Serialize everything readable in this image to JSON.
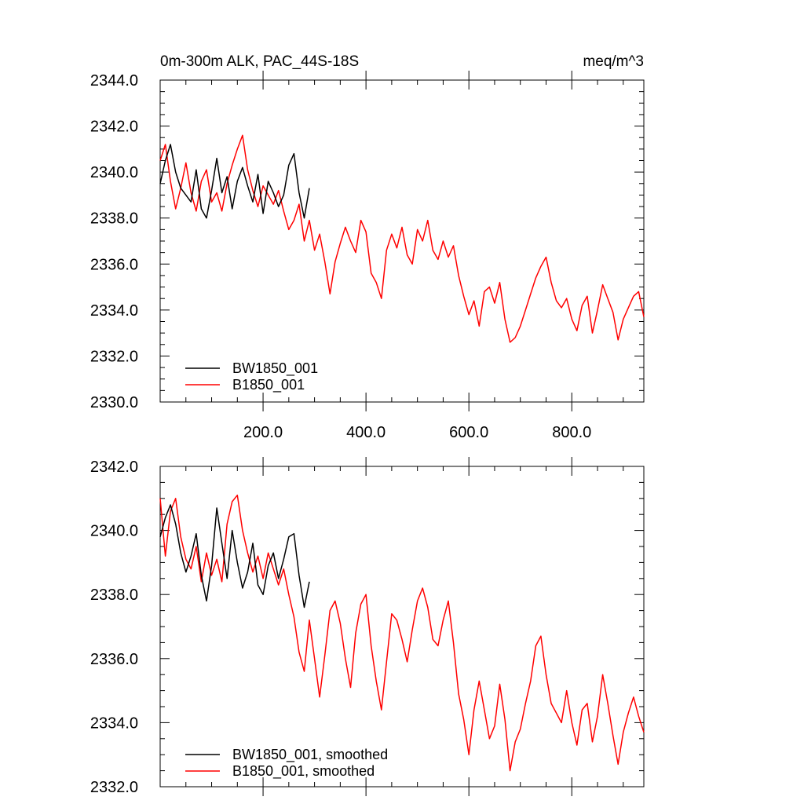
{
  "chart_data": [
    {
      "type": "line",
      "title_left": "0m-300m ALK, PAC_44S-18S",
      "title_right": "meq/m^3",
      "xlim": [
        0,
        940
      ],
      "ylim": [
        2330,
        2344
      ],
      "xticks": [
        200,
        400,
        600,
        800
      ],
      "xtick_labels": [
        "200.0",
        "400.0",
        "600.0",
        "800.0"
      ],
      "yticks": [
        2330,
        2332,
        2334,
        2336,
        2338,
        2340,
        2342,
        2344
      ],
      "ytick_labels": [
        "2330.0",
        "2332.0",
        "2334.0",
        "2336.0",
        "2338.0",
        "2340.0",
        "2342.0",
        "2344.0"
      ],
      "legend_position": "bottom-left",
      "series": [
        {
          "name": "BW1850_001",
          "color": "#000000",
          "x": [
            0,
            10,
            20,
            30,
            40,
            50,
            60,
            70,
            80,
            90,
            100,
            110,
            120,
            130,
            140,
            150,
            160,
            170,
            180,
            190,
            200,
            210,
            220,
            230,
            240,
            250,
            260,
            270,
            280,
            290
          ],
          "values": [
            2339.5,
            2340.5,
            2341.2,
            2340.0,
            2339.3,
            2339.0,
            2338.7,
            2340.1,
            2338.4,
            2338.0,
            2339.2,
            2340.6,
            2339.1,
            2339.8,
            2338.4,
            2339.6,
            2340.2,
            2339.4,
            2338.7,
            2339.9,
            2338.2,
            2339.6,
            2339.1,
            2338.5,
            2339.0,
            2340.3,
            2340.8,
            2339.1,
            2338.0,
            2339.3
          ]
        },
        {
          "name": "B1850_001",
          "color": "#ff0000",
          "x": [
            0,
            10,
            20,
            30,
            40,
            50,
            60,
            70,
            80,
            90,
            100,
            110,
            120,
            130,
            140,
            150,
            160,
            170,
            180,
            190,
            200,
            210,
            220,
            230,
            240,
            250,
            260,
            270,
            280,
            290,
            300,
            310,
            320,
            330,
            340,
            350,
            360,
            370,
            380,
            390,
            400,
            410,
            420,
            430,
            440,
            450,
            460,
            470,
            480,
            490,
            500,
            510,
            520,
            530,
            540,
            550,
            560,
            570,
            580,
            590,
            600,
            610,
            620,
            630,
            640,
            650,
            660,
            670,
            680,
            690,
            700,
            710,
            720,
            730,
            740,
            750,
            760,
            770,
            780,
            790,
            800,
            810,
            820,
            830,
            840,
            850,
            860,
            870,
            880,
            890,
            900,
            910,
            920,
            930,
            940
          ],
          "values": [
            2340.5,
            2341.2,
            2339.6,
            2338.4,
            2339.3,
            2340.4,
            2339.1,
            2338.3,
            2339.6,
            2340.1,
            2338.7,
            2339.1,
            2338.3,
            2339.5,
            2340.3,
            2341.0,
            2341.6,
            2340.1,
            2339.2,
            2338.5,
            2339.4,
            2339.0,
            2338.6,
            2339.2,
            2338.3,
            2337.5,
            2337.9,
            2338.6,
            2337.0,
            2337.9,
            2336.6,
            2337.3,
            2336.1,
            2334.7,
            2336.1,
            2336.9,
            2337.6,
            2337.0,
            2336.5,
            2337.9,
            2337.4,
            2335.6,
            2335.2,
            2334.5,
            2336.6,
            2337.3,
            2336.7,
            2337.6,
            2336.4,
            2336.0,
            2337.5,
            2337.0,
            2337.9,
            2336.6,
            2336.2,
            2337.0,
            2336.3,
            2336.8,
            2335.5,
            2334.6,
            2333.8,
            2334.4,
            2333.3,
            2334.8,
            2335.0,
            2334.3,
            2335.2,
            2333.6,
            2332.6,
            2332.8,
            2333.3,
            2334.0,
            2334.7,
            2335.4,
            2335.9,
            2336.3,
            2335.2,
            2334.4,
            2334.1,
            2334.5,
            2333.6,
            2333.1,
            2334.2,
            2334.6,
            2333.0,
            2334.0,
            2335.1,
            2334.5,
            2333.9,
            2332.7,
            2333.6,
            2334.1,
            2334.6,
            2334.8,
            2333.7
          ]
        }
      ]
    },
    {
      "type": "line",
      "xlim": [
        0,
        940
      ],
      "ylim": [
        2332,
        2342
      ],
      "yticks": [
        2332,
        2334,
        2336,
        2338,
        2340,
        2342
      ],
      "ytick_labels": [
        "2332.0",
        "2334.0",
        "2336.0",
        "2338.0",
        "2340.0",
        "2342.0"
      ],
      "legend_position": "bottom-left",
      "series": [
        {
          "name": "BW1850_001, smoothed",
          "color": "#000000",
          "x": [
            0,
            10,
            20,
            30,
            40,
            50,
            60,
            70,
            80,
            90,
            100,
            110,
            120,
            130,
            140,
            150,
            160,
            170,
            180,
            190,
            200,
            210,
            220,
            230,
            240,
            250,
            260,
            270,
            280,
            290
          ],
          "values": [
            2339.8,
            2340.4,
            2340.8,
            2340.2,
            2339.3,
            2338.7,
            2339.2,
            2339.9,
            2338.6,
            2337.8,
            2338.9,
            2340.7,
            2339.6,
            2338.5,
            2340.0,
            2339.0,
            2338.2,
            2338.7,
            2339.6,
            2338.3,
            2338.0,
            2338.9,
            2339.3,
            2338.5,
            2339.1,
            2339.8,
            2339.9,
            2338.6,
            2337.6,
            2338.4
          ]
        },
        {
          "name": "B1850_001, smoothed",
          "color": "#ff0000",
          "x": [
            0,
            10,
            20,
            30,
            40,
            50,
            60,
            70,
            80,
            90,
            100,
            110,
            120,
            130,
            140,
            150,
            160,
            170,
            180,
            190,
            200,
            210,
            220,
            230,
            240,
            250,
            260,
            270,
            280,
            290,
            300,
            310,
            320,
            330,
            340,
            350,
            360,
            370,
            380,
            390,
            400,
            410,
            420,
            430,
            440,
            450,
            460,
            470,
            480,
            490,
            500,
            510,
            520,
            530,
            540,
            550,
            560,
            570,
            580,
            590,
            600,
            610,
            620,
            630,
            640,
            650,
            660,
            670,
            680,
            690,
            700,
            710,
            720,
            730,
            740,
            750,
            760,
            770,
            780,
            790,
            800,
            810,
            820,
            830,
            840,
            850,
            860,
            870,
            880,
            890,
            900,
            910,
            920,
            930,
            940
          ],
          "values": [
            2341.0,
            2339.2,
            2340.6,
            2341.0,
            2339.8,
            2339.1,
            2338.8,
            2339.5,
            2338.4,
            2339.3,
            2338.6,
            2339.1,
            2338.4,
            2340.2,
            2340.9,
            2341.1,
            2340.0,
            2339.3,
            2338.7,
            2339.2,
            2338.5,
            2339.3,
            2338.8,
            2338.3,
            2338.8,
            2338.0,
            2337.3,
            2336.2,
            2335.6,
            2337.2,
            2336.0,
            2334.8,
            2336.1,
            2337.5,
            2337.8,
            2337.1,
            2336.0,
            2335.1,
            2336.8,
            2337.7,
            2338.0,
            2336.4,
            2335.3,
            2334.4,
            2335.9,
            2337.4,
            2337.2,
            2336.6,
            2335.9,
            2336.9,
            2337.8,
            2338.2,
            2337.6,
            2336.6,
            2336.4,
            2337.2,
            2337.8,
            2336.5,
            2334.9,
            2334.1,
            2333.0,
            2334.4,
            2335.3,
            2334.4,
            2333.5,
            2333.9,
            2335.2,
            2334.1,
            2332.5,
            2333.4,
            2333.8,
            2334.6,
            2335.3,
            2336.4,
            2336.7,
            2335.5,
            2334.6,
            2334.3,
            2334.0,
            2335.0,
            2334.0,
            2333.3,
            2334.4,
            2334.6,
            2333.4,
            2334.2,
            2335.5,
            2334.6,
            2333.6,
            2332.7,
            2333.7,
            2334.3,
            2334.8,
            2334.2,
            2333.7
          ]
        }
      ]
    }
  ]
}
